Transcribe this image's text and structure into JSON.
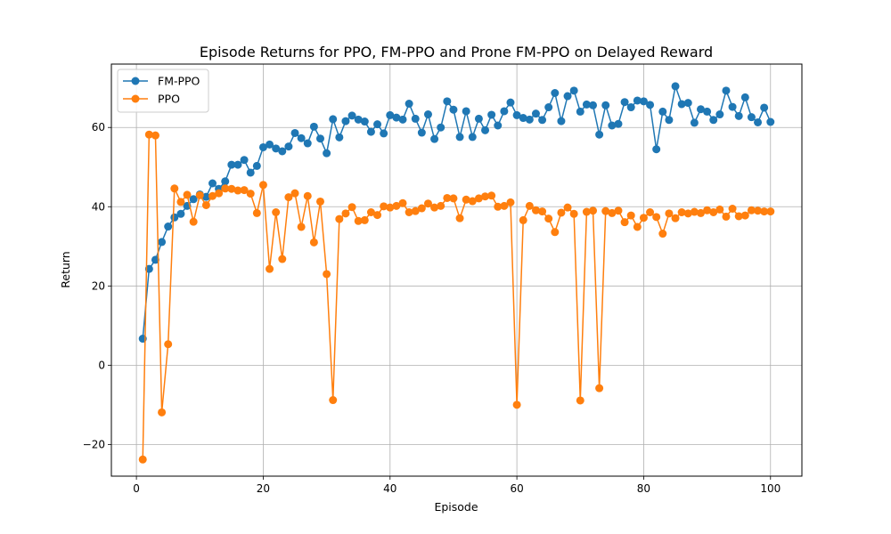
{
  "chart_data": {
    "type": "line",
    "title": "Episode Returns for PPO, FM-PPO and Prone FM-PPO on Delayed Reward",
    "xlabel": "Episode",
    "ylabel": "Return",
    "xlim": [
      -3.95,
      104.95
    ],
    "ylim": [
      -28,
      76
    ],
    "xticks": [
      0,
      20,
      40,
      60,
      80,
      100
    ],
    "yticks": [
      -20,
      0,
      20,
      40,
      60
    ],
    "ytick_labels": [
      "−20",
      "0",
      "20",
      "40",
      "60"
    ],
    "grid": true,
    "legend_position": "top-left",
    "x": [
      1,
      2,
      3,
      4,
      5,
      6,
      7,
      8,
      9,
      10,
      11,
      12,
      13,
      14,
      15,
      16,
      17,
      18,
      19,
      20,
      21,
      22,
      23,
      24,
      25,
      26,
      27,
      28,
      29,
      30,
      31,
      32,
      33,
      34,
      35,
      36,
      37,
      38,
      39,
      40,
      41,
      42,
      43,
      44,
      45,
      46,
      47,
      48,
      49,
      50,
      51,
      52,
      53,
      54,
      55,
      56,
      57,
      58,
      59,
      60,
      61,
      62,
      63,
      64,
      65,
      66,
      67,
      68,
      69,
      70,
      71,
      72,
      73,
      74,
      75,
      76,
      77,
      78,
      79,
      80,
      81,
      82,
      83,
      84,
      85,
      86,
      87,
      88,
      89,
      90,
      91,
      92,
      93,
      94,
      95,
      96,
      97,
      98,
      99,
      100
    ],
    "series": [
      {
        "name": "FM-PPO",
        "color": "#1f77b4",
        "values": [
          6.7,
          24.3,
          26.6,
          31.1,
          35.0,
          37.3,
          38.2,
          40.2,
          41.9,
          43.1,
          42.5,
          45.9,
          44.5,
          46.4,
          50.6,
          50.6,
          51.8,
          48.6,
          50.3,
          55.0,
          55.7,
          54.7,
          54.0,
          55.2,
          58.6,
          57.3,
          56.0,
          60.2,
          57.2,
          53.5,
          62.1,
          57.5,
          61.6,
          63.0,
          62.0,
          61.5,
          58.9,
          60.8,
          58.5,
          63.1,
          62.5,
          62.0,
          66.0,
          62.2,
          58.7,
          63.3,
          57.1,
          60.0,
          66.6,
          64.5,
          57.6,
          64.1,
          57.6,
          62.2,
          59.3,
          63.2,
          60.5,
          64.1,
          66.3,
          63.1,
          62.4,
          62.0,
          63.5,
          61.9,
          65.1,
          68.7,
          61.6,
          67.9,
          69.3,
          64.0,
          65.8,
          65.6,
          58.2,
          65.6,
          60.5,
          60.9,
          66.4,
          65.1,
          66.8,
          66.6,
          65.7,
          54.5,
          64.0,
          61.9,
          70.4,
          65.9,
          66.2,
          61.2,
          64.6,
          64.0,
          61.9,
          63.3,
          69.3,
          65.2,
          62.9,
          67.6,
          62.6,
          61.3,
          65.0,
          61.4
        ]
      },
      {
        "name": "PPO",
        "color": "#ff7f0e",
        "values": [
          -23.8,
          58.2,
          58.0,
          -11.9,
          5.3,
          44.6,
          41.2,
          43.0,
          36.2,
          42.9,
          40.4,
          42.7,
          43.4,
          44.6,
          44.5,
          44.1,
          44.2,
          43.3,
          38.4,
          45.5,
          24.3,
          38.6,
          26.8,
          42.4,
          43.4,
          34.9,
          42.7,
          31.0,
          41.3,
          23.0,
          -8.8,
          36.9,
          38.3,
          39.9,
          36.4,
          36.6,
          38.6,
          37.9,
          40.1,
          39.8,
          40.2,
          40.9,
          38.6,
          38.9,
          39.6,
          40.8,
          39.8,
          40.2,
          42.2,
          42.1,
          37.1,
          41.8,
          41.4,
          42.1,
          42.6,
          42.8,
          40.0,
          40.2,
          41.1,
          -10.0,
          36.6,
          40.2,
          39.1,
          38.8,
          37.0,
          33.6,
          38.5,
          39.8,
          38.2,
          -8.9,
          38.7,
          39.0,
          -5.8,
          38.9,
          38.4,
          39.0,
          36.1,
          37.8,
          34.9,
          37.2,
          38.6,
          37.4,
          33.2,
          38.3,
          37.1,
          38.6,
          38.3,
          38.7,
          38.4,
          39.1,
          38.6,
          39.3,
          37.5,
          39.5,
          37.6,
          37.8,
          39.1,
          39.0,
          38.8,
          38.8
        ]
      }
    ]
  }
}
